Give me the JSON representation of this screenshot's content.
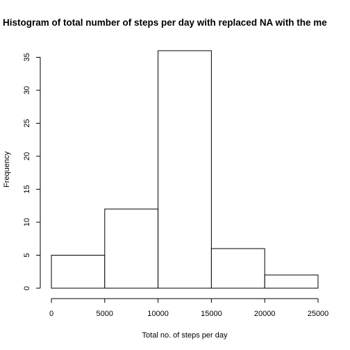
{
  "chart_data": {
    "type": "bar",
    "title": "Histogram of total number of steps per day with replaced NA with the me",
    "xlabel": "Total no. of steps per day",
    "ylabel": "Frequency",
    "bins": [
      {
        "from": 0,
        "to": 5000,
        "value": 5
      },
      {
        "from": 5000,
        "to": 10000,
        "value": 12
      },
      {
        "from": 10000,
        "to": 15000,
        "value": 36
      },
      {
        "from": 15000,
        "to": 20000,
        "value": 6
      },
      {
        "from": 20000,
        "to": 25000,
        "value": 2
      }
    ],
    "xlim": [
      0,
      25000
    ],
    "ylim": [
      0,
      36
    ],
    "x_ticks": [
      "0",
      "5000",
      "10000",
      "15000",
      "20000",
      "25000"
    ],
    "y_ticks": [
      "0",
      "5",
      "10",
      "15",
      "20",
      "25",
      "30",
      "35"
    ],
    "bar_fill": "#ffffff",
    "bar_stroke": "#000000",
    "grid": false
  }
}
